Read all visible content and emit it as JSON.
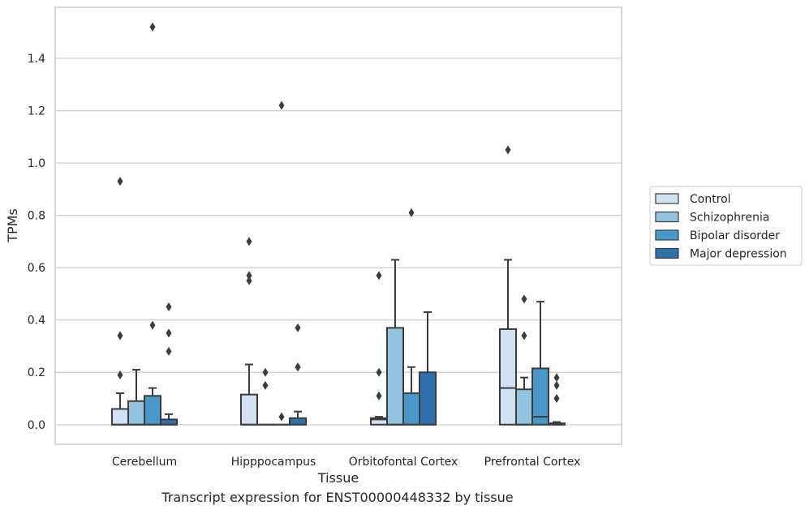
{
  "chart_data": {
    "type": "box",
    "ylabel": "TPMs",
    "xlabel": "Tissue",
    "ylim": [
      -0.075,
      1.595
    ],
    "yticks": [
      "0.0",
      "0.2",
      "0.4",
      "0.6",
      "0.8",
      "1.0",
      "1.2",
      "1.4"
    ],
    "grid": true,
    "legend_position": "right",
    "categories": [
      "Cerebellum",
      "Hipppocampus",
      "Orbitofontal Cortex",
      "Prefrontal Cortex"
    ],
    "series": [
      {
        "name": "Control",
        "color": "#d0e1f2",
        "boxes": [
          {
            "q1": 0.0,
            "median": 0.0,
            "q3": 0.06,
            "whisker_low": 0.0,
            "whisker_high": 0.12,
            "outliers": [
              0.19,
              0.34,
              0.93
            ]
          },
          {
            "q1": 0.0,
            "median": 0.0,
            "q3": 0.115,
            "whisker_low": 0.0,
            "whisker_high": 0.23,
            "outliers": [
              0.55,
              0.57,
              0.7
            ]
          },
          {
            "q1": 0.0,
            "median": 0.02,
            "q3": 0.025,
            "whisker_low": 0.0,
            "whisker_high": 0.03,
            "outliers": [
              0.11,
              0.2,
              0.57
            ]
          },
          {
            "q1": 0.0,
            "median": 0.14,
            "q3": 0.365,
            "whisker_low": 0.0,
            "whisker_high": 0.63,
            "outliers": [
              1.05
            ]
          }
        ]
      },
      {
        "name": "Schizophrenia",
        "color": "#94c4df",
        "boxes": [
          {
            "q1": 0.0,
            "median": 0.0,
            "q3": 0.09,
            "whisker_low": 0.0,
            "whisker_high": 0.21,
            "outliers": []
          },
          {
            "q1": 0.0,
            "median": 0.0,
            "q3": 0.0,
            "whisker_low": 0.0,
            "whisker_high": 0.0,
            "outliers": [
              0.15,
              0.2
            ]
          },
          {
            "q1": 0.0,
            "median": 0.0,
            "q3": 0.37,
            "whisker_low": 0.0,
            "whisker_high": 0.63,
            "outliers": []
          },
          {
            "q1": 0.0,
            "median": 0.0,
            "q3": 0.135,
            "whisker_low": 0.0,
            "whisker_high": 0.18,
            "outliers": [
              0.34,
              0.48
            ]
          }
        ]
      },
      {
        "name": "Bipolar disorder",
        "color": "#4a98c9",
        "boxes": [
          {
            "q1": 0.0,
            "median": 0.0,
            "q3": 0.11,
            "whisker_low": 0.0,
            "whisker_high": 0.14,
            "outliers": [
              0.38,
              1.52
            ]
          },
          {
            "q1": 0.0,
            "median": 0.0,
            "q3": 0.0,
            "whisker_low": 0.0,
            "whisker_high": 0.0,
            "outliers": [
              0.03,
              1.22
            ]
          },
          {
            "q1": 0.0,
            "median": 0.0,
            "q3": 0.12,
            "whisker_low": 0.0,
            "whisker_high": 0.22,
            "outliers": [
              0.81
            ]
          },
          {
            "q1": 0.0,
            "median": 0.03,
            "q3": 0.215,
            "whisker_low": 0.0,
            "whisker_high": 0.47,
            "outliers": []
          }
        ]
      },
      {
        "name": "Major depression",
        "color": "#2e6fac",
        "boxes": [
          {
            "q1": 0.0,
            "median": 0.0,
            "q3": 0.02,
            "whisker_low": 0.0,
            "whisker_high": 0.04,
            "outliers": [
              0.28,
              0.35,
              0.45
            ]
          },
          {
            "q1": 0.0,
            "median": 0.0,
            "q3": 0.025,
            "whisker_low": 0.0,
            "whisker_high": 0.05,
            "outliers": [
              0.22,
              0.22,
              0.37
            ]
          },
          {
            "q1": 0.0,
            "median": 0.0,
            "q3": 0.2,
            "whisker_low": 0.0,
            "whisker_high": 0.43,
            "outliers": []
          },
          {
            "q1": 0.0,
            "median": 0.0,
            "q3": 0.005,
            "whisker_low": 0.0,
            "whisker_high": 0.01,
            "outliers": [
              0.1,
              0.15,
              0.18
            ]
          }
        ]
      }
    ]
  },
  "caption": "Transcript expression for ENST00000448332 by tissue"
}
